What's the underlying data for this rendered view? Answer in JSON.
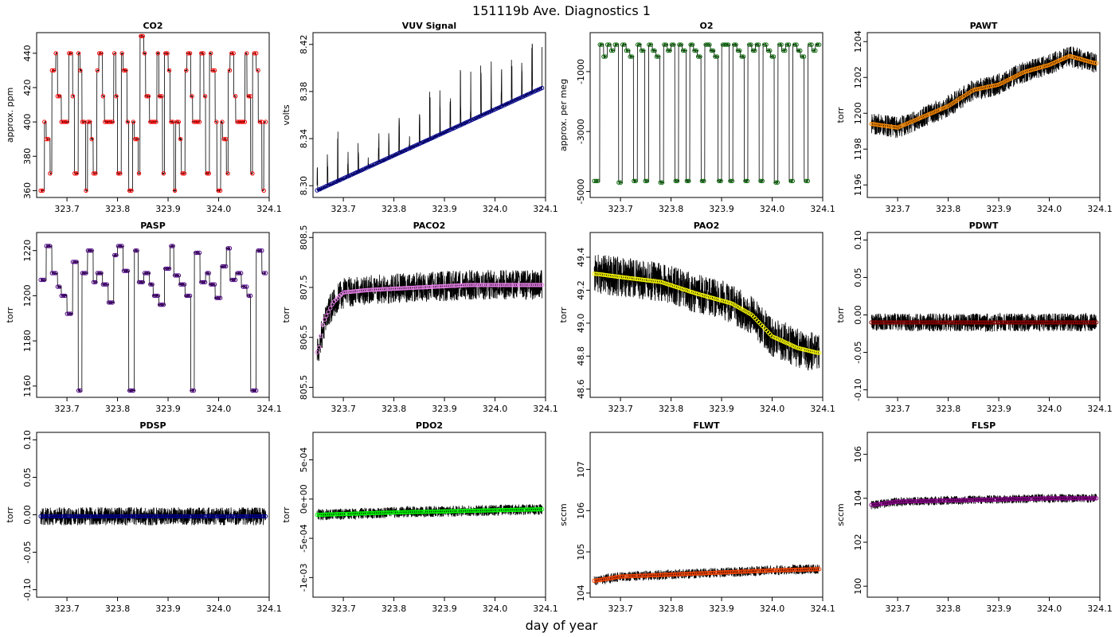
{
  "figure": {
    "title": "151119b   Ave. Diagnostics 1",
    "xlabel": "day of year"
  },
  "chart_data": [
    {
      "type": "line",
      "title": "CO2",
      "ylabel": "approx. ppm",
      "xlim": [
        323.64,
        324.1
      ],
      "ylim": [
        356,
        452
      ],
      "xticks": [
        "323.7",
        "323.8",
        "323.9",
        "324.0",
        "324.1"
      ],
      "yticks": [
        "360",
        "380",
        "400",
        "420",
        "440"
      ],
      "marker_color": "#ff0000",
      "noise": 0.3,
      "rot_ylab": true,
      "mode": "steps",
      "n": 120,
      "pattern": [
        360,
        400,
        390,
        370,
        430,
        440,
        415,
        400,
        400,
        400,
        440,
        415,
        370,
        440,
        430,
        400,
        360,
        400,
        390,
        370,
        430,
        440,
        415,
        400,
        400,
        400,
        440,
        415,
        370,
        440,
        430,
        400,
        360,
        400,
        390,
        370,
        450,
        440,
        415,
        400,
        400,
        400,
        440,
        415,
        370,
        440,
        430,
        400,
        360,
        400,
        390,
        370,
        430,
        440,
        415,
        400,
        400,
        400,
        440,
        415,
        370,
        440,
        430,
        400,
        360,
        400,
        390,
        370,
        430,
        440,
        415,
        400,
        400,
        400,
        440,
        415,
        370,
        440,
        430,
        400,
        360,
        400
      ]
    },
    {
      "type": "line",
      "title": "VUV Signal",
      "ylabel": "volts",
      "xlim": [
        323.64,
        324.1
      ],
      "ylim": [
        8.29,
        8.43
      ],
      "xticks": [
        "323.7",
        "323.8",
        "323.9",
        "324.0",
        "324.1"
      ],
      "yticks": [
        "8.30",
        "8.34",
        "8.38",
        "8.42"
      ],
      "marker_color": "#00008b",
      "noise": 0.001,
      "rot_ylab": true,
      "mode": "trend_spikes",
      "n": 120,
      "start": 8.296,
      "end": 8.383,
      "spike_heights": [
        0.043,
        0.044,
        0.043,
        0.042,
        0.025,
        0.025,
        0.027,
        0.03,
        0.032,
        0.033,
        0.042,
        0.045,
        0.046,
        0.047,
        0.048,
        0.043,
        0.043,
        0.045,
        0.046,
        0.047,
        0.045,
        0.047
      ]
    },
    {
      "type": "line",
      "title": "O2",
      "ylabel": "approx. per meg",
      "xlim": [
        323.64,
        324.1
      ],
      "ylim": [
        -5200,
        300
      ],
      "xticks": [
        "323.7",
        "323.8",
        "323.9",
        "324.0",
        "324.1"
      ],
      "yticks": [
        "-5000",
        "-3000",
        "-1000"
      ],
      "marker_color": "#006400",
      "noise": 10,
      "rot_ylab": true,
      "mode": "steps",
      "n": 120,
      "pattern": [
        -4650,
        -100,
        -500,
        -100,
        -300,
        -100,
        -4700,
        -100,
        -300,
        -500,
        -4650,
        -100,
        -300,
        -4650,
        -100,
        -300,
        -500,
        -4700,
        -100,
        -300,
        -100,
        -4650,
        -100,
        -300,
        -4650,
        -100,
        -300,
        -500,
        -4650,
        -100,
        -300,
        -500,
        -4650,
        -100,
        -100,
        -4650,
        -100,
        -300,
        -500,
        -4650,
        -100,
        -300,
        -100,
        -4650,
        -100,
        -300,
        -500,
        -4700,
        -100,
        -300,
        -100,
        -4650,
        -100,
        -300,
        -500,
        -4650,
        -100,
        -300,
        -100
      ]
    },
    {
      "type": "line",
      "title": "PAWT",
      "ylabel": "torr",
      "xlim": [
        323.64,
        324.1
      ],
      "ylim": [
        1195.3,
        1204.5
      ],
      "xticks": [
        "323.7",
        "323.8",
        "323.9",
        "324.0",
        "324.1"
      ],
      "yticks": [
        "1196",
        "1198",
        "1200",
        "1202",
        "1204"
      ],
      "marker_color": "#ff8c00",
      "noise": 0.6,
      "rot_ylab": false,
      "mode": "points",
      "n": 120,
      "anchors": [
        [
          323.65,
          1199.4
        ],
        [
          323.7,
          1199.2
        ],
        [
          323.75,
          1199.8
        ],
        [
          323.8,
          1200.4
        ],
        [
          323.85,
          1201.3
        ],
        [
          323.9,
          1201.6
        ],
        [
          323.95,
          1202.3
        ],
        [
          324.0,
          1202.7
        ],
        [
          324.04,
          1203.2
        ],
        [
          324.09,
          1202.8
        ]
      ]
    },
    {
      "type": "line",
      "title": "PASP",
      "ylabel": "torr",
      "xlim": [
        323.64,
        324.1
      ],
      "ylim": [
        1155,
        1228
      ],
      "xticks": [
        "323.7",
        "323.8",
        "323.9",
        "324.0",
        "324.1"
      ],
      "yticks": [
        "1160",
        "1180",
        "1200",
        "1220"
      ],
      "marker_color": "#4b0082",
      "noise": 0.3,
      "rot_ylab": false,
      "mode": "steps",
      "n": 120,
      "pattern": [
        1207,
        1222,
        1210,
        1204,
        1200,
        1192,
        1215,
        1158,
        1210,
        1220,
        1206,
        1210,
        1205,
        1197,
        1218,
        1222,
        1211,
        1158,
        1220,
        1206,
        1210,
        1205,
        1200,
        1196,
        1212,
        1222,
        1209,
        1205,
        1200,
        1158,
        1219,
        1206,
        1210,
        1205,
        1199,
        1213,
        1221,
        1207,
        1210,
        1204,
        1200,
        1158,
        1220,
        1210
      ]
    },
    {
      "type": "line",
      "title": "PACO2",
      "ylabel": "torr",
      "xlim": [
        323.64,
        324.1
      ],
      "ylim": [
        805.3,
        808.6
      ],
      "xticks": [
        "323.7",
        "323.8",
        "323.9",
        "324.0",
        "324.1"
      ],
      "yticks": [
        "805.5",
        "806.5",
        "807.5",
        "808.5"
      ],
      "marker_color": "#ee82ee",
      "noise": 0.3,
      "rot_ylab": true,
      "mode": "points",
      "n": 120,
      "anchors": [
        [
          323.65,
          806.2
        ],
        [
          323.66,
          806.8
        ],
        [
          323.68,
          807.2
        ],
        [
          323.7,
          807.4
        ],
        [
          323.75,
          807.45
        ],
        [
          323.85,
          807.5
        ],
        [
          323.95,
          807.55
        ],
        [
          324.09,
          807.55
        ]
      ]
    },
    {
      "type": "line",
      "title": "PAO2",
      "ylabel": "torr",
      "xlim": [
        323.64,
        324.1
      ],
      "ylim": [
        48.55,
        49.55
      ],
      "xticks": [
        "323.7",
        "323.8",
        "323.9",
        "324.0",
        "324.1"
      ],
      "yticks": [
        "48.6",
        "48.8",
        "49.0",
        "49.2",
        "49.4"
      ],
      "marker_color": "#ffff00",
      "noise": 0.12,
      "rot_ylab": true,
      "mode": "points",
      "n": 120,
      "anchors": [
        [
          323.65,
          49.3
        ],
        [
          323.7,
          49.28
        ],
        [
          323.78,
          49.25
        ],
        [
          323.85,
          49.18
        ],
        [
          323.92,
          49.12
        ],
        [
          323.96,
          49.05
        ],
        [
          324.0,
          48.92
        ],
        [
          324.05,
          48.85
        ],
        [
          324.09,
          48.82
        ]
      ]
    },
    {
      "type": "line",
      "title": "PDWT",
      "ylabel": "torr",
      "xlim": [
        323.64,
        324.1
      ],
      "ylim": [
        -0.11,
        0.11
      ],
      "xticks": [
        "323.7",
        "323.8",
        "323.9",
        "324.0",
        "324.1"
      ],
      "yticks": [
        "-0.10",
        "-0.05",
        "0.00",
        "0.05",
        "0.10"
      ],
      "marker_color": "#8b0000",
      "noise": 0.012,
      "rot_ylab": true,
      "mode": "points",
      "n": 120,
      "anchors": [
        [
          323.65,
          -0.01
        ],
        [
          324.09,
          -0.01
        ]
      ]
    },
    {
      "type": "line",
      "title": "PDSP",
      "ylabel": "torr",
      "xlim": [
        323.64,
        324.1
      ],
      "ylim": [
        -0.11,
        0.11
      ],
      "xticks": [
        "323.7",
        "323.8",
        "323.9",
        "324.0",
        "324.1"
      ],
      "yticks": [
        "-0.10",
        "-0.05",
        "0.00",
        "0.05",
        "0.10"
      ],
      "marker_color": "#00008b",
      "noise": 0.012,
      "rot_ylab": true,
      "mode": "points",
      "n": 120,
      "anchors": [
        [
          323.65,
          -0.002
        ],
        [
          324.09,
          -0.002
        ]
      ]
    },
    {
      "type": "line",
      "title": "PDO2",
      "ylabel": "torr",
      "xlim": [
        323.64,
        324.1
      ],
      "ylim": [
        -0.00125,
        0.00085
      ],
      "xticks": [
        "323.7",
        "323.8",
        "323.9",
        "324.0",
        "324.1"
      ],
      "yticks": [
        "-1e-03",
        "-5e-04",
        "0e+00",
        "5e-04"
      ],
      "marker_color": "#00ff00",
      "noise": 7e-05,
      "rot_ylab": true,
      "mode": "points",
      "n": 120,
      "anchors": [
        [
          323.65,
          -0.0002
        ],
        [
          323.8,
          -0.00017
        ],
        [
          324.09,
          -0.00013
        ]
      ]
    },
    {
      "type": "line",
      "title": "FLWT",
      "ylabel": "sccm",
      "xlim": [
        323.64,
        324.1
      ],
      "ylim": [
        103.9,
        107.9
      ],
      "xticks": [
        "323.7",
        "323.8",
        "323.9",
        "324.0",
        "324.1"
      ],
      "yticks": [
        "104",
        "105",
        "106",
        "107"
      ],
      "marker_color": "#ff4500",
      "noise": 0.12,
      "rot_ylab": true,
      "mode": "points",
      "n": 120,
      "anchors": [
        [
          323.65,
          104.3
        ],
        [
          323.7,
          104.4
        ],
        [
          323.8,
          104.45
        ],
        [
          323.9,
          104.5
        ],
        [
          324.0,
          104.55
        ],
        [
          324.09,
          104.58
        ]
      ]
    },
    {
      "type": "line",
      "title": "FLSP",
      "ylabel": "sccm",
      "xlim": [
        323.64,
        324.1
      ],
      "ylim": [
        99.5,
        107
      ],
      "xticks": [
        "323.7",
        "323.8",
        "323.9",
        "324.0",
        "324.1"
      ],
      "yticks": [
        "100",
        "102",
        "104",
        "106"
      ],
      "marker_color": "#8b008b",
      "noise": 0.2,
      "rot_ylab": true,
      "mode": "points",
      "n": 120,
      "anchors": [
        [
          323.65,
          103.7
        ],
        [
          323.7,
          103.85
        ],
        [
          323.8,
          103.9
        ],
        [
          323.9,
          103.95
        ],
        [
          324.0,
          104.0
        ],
        [
          324.09,
          104.0
        ]
      ]
    }
  ]
}
